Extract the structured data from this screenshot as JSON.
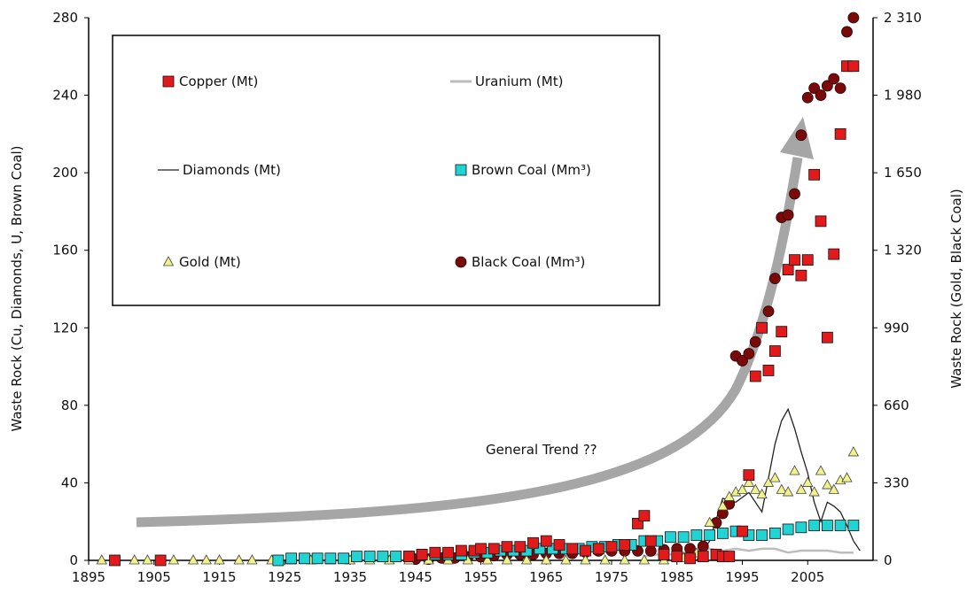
{
  "chart_data": {
    "type": "scatter",
    "title": "",
    "xlabel": "",
    "ylabel": "Waste Rock (Cu, Diamonds, U, Brown Coal)",
    "y2label": "Waste Rock (Gold, Black Coal)",
    "xlim": [
      1895,
      2015
    ],
    "ylim": [
      0,
      280
    ],
    "y2lim": [
      0,
      2310
    ],
    "x_ticks": [
      "1895",
      "1905",
      "1915",
      "1925",
      "1935",
      "1945",
      "1955",
      "1965",
      "1975",
      "1985",
      "1995",
      "2005"
    ],
    "y_ticks": [
      "0",
      "40",
      "80",
      "120",
      "160",
      "200",
      "240",
      "280"
    ],
    "y2_ticks": [
      "0",
      "330",
      "660",
      "990",
      "1 320",
      "1 650",
      "1 980",
      "2 310"
    ],
    "grid": false,
    "legend_placement": "top-left",
    "annotation": "General Trend ??",
    "colors": {
      "copper": "#e31a1c",
      "uranium": "#bdbdbd",
      "diamonds": "#222222",
      "brown_coal": "#22d3d3",
      "gold": "#f2f28a",
      "black_coal": "#7a0a0a",
      "trend_arrow": "#a6a6a6"
    },
    "legend": [
      {
        "key": "copper",
        "label": "Copper (Mt)",
        "marker": "square"
      },
      {
        "key": "uranium",
        "label": "Uranium (Mt)",
        "marker": "line"
      },
      {
        "key": "diamonds",
        "label": "Diamonds (Mt)",
        "marker": "line"
      },
      {
        "key": "brown_coal",
        "label": "Brown Coal (Mm³)",
        "marker": "square"
      },
      {
        "key": "gold",
        "label": "Gold (Mt)",
        "marker": "triangle"
      },
      {
        "key": "black_coal",
        "label": "Black Coal (Mm³)",
        "marker": "circle"
      }
    ],
    "series": [
      {
        "name": "Copper (Mt)",
        "key": "copper",
        "axis": "left",
        "marker": "square",
        "x": [
          1899,
          1906,
          1944,
          1946,
          1948,
          1950,
          1952,
          1954,
          1955,
          1957,
          1959,
          1961,
          1963,
          1965,
          1967,
          1969,
          1971,
          1973,
          1975,
          1977,
          1979,
          1980,
          1981,
          1983,
          1985,
          1987,
          1989,
          1991,
          1992,
          1993,
          1995,
          1996,
          1997,
          1998,
          1999,
          2000,
          2001,
          2002,
          2003,
          2004,
          2005,
          2006,
          2007,
          2008,
          2009,
          2010,
          2011,
          2012
        ],
        "y": [
          0,
          0,
          2,
          3,
          4,
          4,
          5,
          5,
          6,
          6,
          7,
          7,
          9,
          10,
          8,
          6,
          5,
          6,
          7,
          8,
          19,
          23,
          10,
          3,
          2,
          1,
          2,
          3,
          2,
          2,
          15,
          44,
          95,
          120,
          98,
          108,
          118,
          150,
          155,
          147,
          155,
          199,
          175,
          115,
          158,
          220,
          255,
          255
        ]
      },
      {
        "name": "Brown Coal (Mm³)",
        "key": "brown_coal",
        "axis": "left",
        "marker": "square",
        "x": [
          1924,
          1926,
          1928,
          1930,
          1932,
          1934,
          1936,
          1938,
          1940,
          1942,
          1944,
          1946,
          1948,
          1950,
          1952,
          1954,
          1956,
          1958,
          1960,
          1962,
          1964,
          1966,
          1968,
          1970,
          1972,
          1974,
          1976,
          1978,
          1980,
          1982,
          1984,
          1986,
          1988,
          1990,
          1992,
          1994,
          1996,
          1998,
          2000,
          2002,
          2004,
          2006,
          2008,
          2010,
          2012
        ],
        "y": [
          0,
          1,
          1,
          1,
          1,
          1,
          2,
          2,
          2,
          2,
          2,
          3,
          3,
          3,
          3,
          4,
          4,
          5,
          5,
          5,
          6,
          6,
          6,
          6,
          7,
          7,
          8,
          8,
          10,
          10,
          12,
          12,
          13,
          13,
          14,
          15,
          13,
          13,
          14,
          16,
          17,
          18,
          18,
          18,
          18
        ]
      },
      {
        "name": "Gold (Mt)",
        "key": "gold",
        "axis": "right",
        "marker": "triangle",
        "x": [
          1897,
          1899,
          1902,
          1904,
          1906,
          1908,
          1911,
          1913,
          1915,
          1918,
          1920,
          1923,
          1926,
          1929,
          1932,
          1935,
          1938,
          1941,
          1944,
          1947,
          1950,
          1953,
          1956,
          1959,
          1962,
          1965,
          1968,
          1971,
          1974,
          1977,
          1980,
          1983,
          1986,
          1988,
          1990,
          1992,
          1993,
          1994,
          1995,
          1996,
          1997,
          1998,
          1999,
          2000,
          2001,
          2002,
          2003,
          2004,
          2005,
          2006,
          2007,
          2008,
          2009,
          2010,
          2011,
          2012
        ],
        "y": [
          0,
          0,
          0,
          0,
          0,
          0,
          0,
          0,
          0,
          0,
          0,
          0,
          0,
          0,
          0,
          0,
          0,
          0,
          0,
          0,
          0,
          0,
          0,
          0,
          0,
          0,
          0,
          0,
          0,
          0,
          0,
          0,
          10,
          30,
          160,
          230,
          270,
          290,
          300,
          330,
          300,
          280,
          330,
          350,
          300,
          290,
          380,
          300,
          330,
          290,
          380,
          320,
          300,
          340,
          350,
          460
        ]
      },
      {
        "name": "Black Coal (Mm³)",
        "key": "black_coal",
        "axis": "right",
        "marker": "circle",
        "x": [
          1945,
          1947,
          1949,
          1951,
          1953,
          1955,
          1957,
          1959,
          1961,
          1963,
          1965,
          1967,
          1969,
          1971,
          1973,
          1975,
          1977,
          1979,
          1981,
          1983,
          1985,
          1987,
          1989,
          1991,
          1992,
          1993,
          1994,
          1995,
          1996,
          1997,
          1998,
          1999,
          2000,
          2001,
          2002,
          2003,
          2004,
          2005,
          2006,
          2007,
          2008,
          2009,
          2010,
          2011,
          2012
        ],
        "y": [
          5,
          5,
          10,
          10,
          15,
          15,
          20,
          25,
          25,
          25,
          30,
          30,
          30,
          35,
          40,
          40,
          40,
          40,
          40,
          45,
          50,
          50,
          60,
          160,
          200,
          240,
          870,
          850,
          880,
          930,
          990,
          1060,
          1200,
          1460,
          1470,
          1560,
          1810,
          1970,
          2010,
          1980,
          2020,
          2050,
          2010,
          2250,
          2310
        ]
      },
      {
        "name": "Diamonds (Mt)",
        "key": "diamonds",
        "axis": "left",
        "marker": "line",
        "x": [
          1982,
          1984,
          1986,
          1988,
          1990,
          1992,
          1994,
          1996,
          1998,
          2000,
          2001,
          2002,
          2003,
          2004,
          2005,
          2006,
          2007,
          2008,
          2009,
          2010,
          2011,
          2012,
          2013
        ],
        "y": [
          0,
          0,
          0,
          0,
          10,
          32,
          30,
          35,
          25,
          60,
          72,
          78,
          68,
          56,
          45,
          30,
          20,
          30,
          28,
          25,
          18,
          10,
          5
        ]
      },
      {
        "name": "Uranium (Mt)",
        "key": "uranium",
        "axis": "left",
        "marker": "line",
        "x": [
          1980,
          1982,
          1984,
          1986,
          1988,
          1990,
          1992,
          1994,
          1996,
          1998,
          2000,
          2002,
          2004,
          2006,
          2008,
          2010,
          2012
        ],
        "y": [
          2,
          3,
          3,
          4,
          5,
          6,
          5,
          6,
          5,
          6,
          6,
          4,
          5,
          5,
          5,
          4,
          4
        ]
      }
    ]
  }
}
